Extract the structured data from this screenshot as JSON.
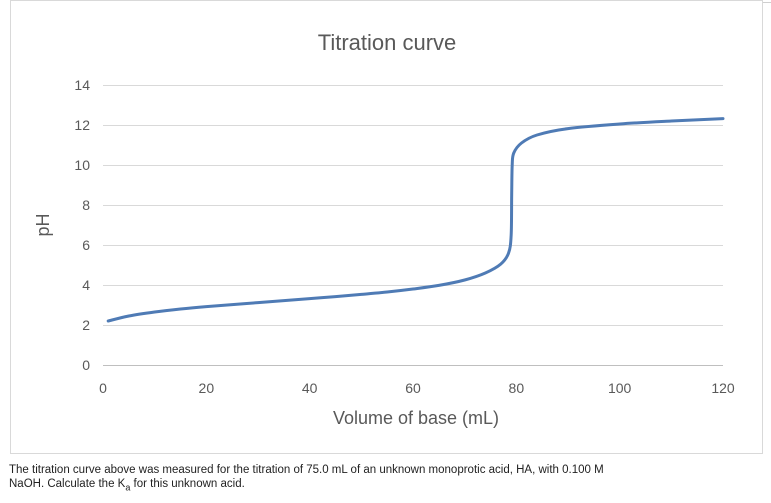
{
  "chart_data": {
    "type": "line",
    "title": "Titration curve",
    "xlabel": "Volume of base (mL)",
    "ylabel": "pH",
    "xlim": [
      0,
      120
    ],
    "ylim": [
      0,
      14
    ],
    "x_ticks": [
      "0",
      "20",
      "40",
      "60",
      "80",
      "100",
      "120"
    ],
    "y_ticks": [
      "0",
      "2",
      "4",
      "6",
      "8",
      "10",
      "12",
      "14"
    ],
    "grid": "horizontal",
    "legend": "none",
    "series": [
      {
        "color": "#4f7bb5",
        "points": [
          [
            1,
            2.2
          ],
          [
            5,
            2.45
          ],
          [
            10,
            2.65
          ],
          [
            15,
            2.8
          ],
          [
            20,
            2.92
          ],
          [
            25,
            3.02
          ],
          [
            30,
            3.12
          ],
          [
            35,
            3.22
          ],
          [
            40,
            3.32
          ],
          [
            45,
            3.42
          ],
          [
            50,
            3.53
          ],
          [
            55,
            3.65
          ],
          [
            60,
            3.8
          ],
          [
            65,
            3.98
          ],
          [
            70,
            4.25
          ],
          [
            74,
            4.6
          ],
          [
            77,
            5.05
          ],
          [
            78.5,
            5.6
          ],
          [
            79,
            6.5
          ],
          [
            79.1,
            8.5
          ],
          [
            79.2,
            10.0
          ],
          [
            79.5,
            10.6
          ],
          [
            81,
            11.1
          ],
          [
            84,
            11.5
          ],
          [
            90,
            11.82
          ],
          [
            100,
            12.05
          ],
          [
            110,
            12.2
          ],
          [
            120,
            12.32
          ]
        ]
      }
    ]
  },
  "caption": {
    "line1": "The titration curve above was measured for the titration of 75.0 mL of an unknown monoprotic acid, HA, with 0.100 M",
    "line2_before": "NaOH. Calculate the K",
    "line2_sub": "a",
    "line2_after": " for this unknown acid."
  }
}
